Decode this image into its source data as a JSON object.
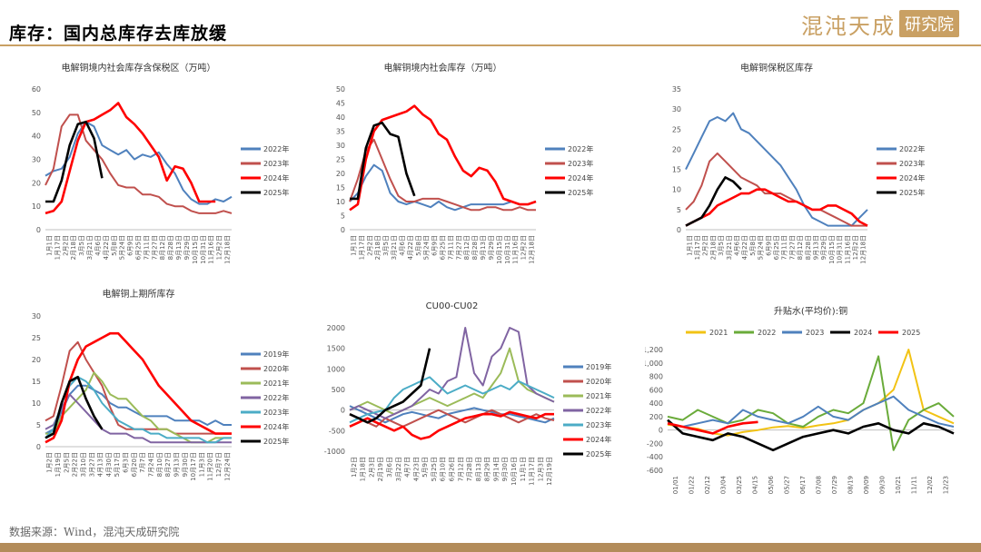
{
  "header": {
    "title": "库存：国内总库存去库放缓",
    "brand_name": "混沌天成",
    "brand_seal": "研究院",
    "accent_color": "#c9a063"
  },
  "footer": {
    "source": "数据来源：Wind，混沌天成研究院",
    "bar_color": "#b38c5a"
  },
  "chart_data": [
    {
      "type": "line",
      "title": "电解铜境内社会库存含保税区（万吨）",
      "ylim": [
        0,
        60
      ],
      "yticks": [
        0,
        10,
        20,
        30,
        40,
        50,
        60
      ],
      "xticklabels": [
        "1月1日",
        "1月17日",
        "2月2日",
        "2月18日",
        "3月5日",
        "3月21日",
        "4月6日",
        "4月22日",
        "5月8日",
        "5月24日",
        "6月9日",
        "6月25日",
        "7月11日",
        "7月27日",
        "8月12日",
        "8月28日",
        "9月13日",
        "9月29日",
        "10月15日",
        "10月31日",
        "11月16日",
        "12月2日",
        "12月18日"
      ],
      "legend_position": "right",
      "series": [
        {
          "name": "2022年",
          "color": "#4f81bd",
          "values": [
            23,
            25,
            26,
            31,
            41,
            46,
            44,
            36,
            34,
            32,
            34,
            30,
            32,
            31,
            33,
            28,
            24,
            17,
            13,
            11,
            11,
            13,
            12,
            14
          ]
        },
        {
          "name": "2023年",
          "color": "#c0504d",
          "values": [
            19,
            26,
            44,
            49,
            49,
            38,
            34,
            30,
            24,
            19,
            18,
            18,
            15,
            15,
            14,
            11,
            10,
            10,
            8,
            7,
            7,
            7,
            8,
            7
          ]
        },
        {
          "name": "2024年",
          "color": "#ff0000",
          "values": [
            7,
            8,
            12,
            25,
            38,
            46,
            47,
            49,
            51,
            54,
            48,
            45,
            41,
            36,
            31,
            21,
            27,
            26,
            20,
            12,
            12,
            12,
            null,
            null
          ]
        },
        {
          "name": "2025年",
          "color": "#000000",
          "values": [
            12,
            12,
            21,
            36,
            45,
            46,
            39,
            22,
            null,
            null,
            null,
            null,
            null,
            null,
            null,
            null,
            null,
            null,
            null,
            null,
            null,
            null,
            null,
            null
          ]
        }
      ]
    },
    {
      "type": "line",
      "title": "电解铜境内社会库存（万吨）",
      "ylim": [
        0,
        50
      ],
      "yticks": [
        0,
        5,
        10,
        15,
        20,
        25,
        30,
        35,
        40,
        45,
        50
      ],
      "xticklabels": [
        "1月1日",
        "1月17日",
        "2月2日",
        "2月18日",
        "3月5日",
        "3月21日",
        "4月6日",
        "4月22日",
        "5月8日",
        "5月24日",
        "6月9日",
        "6月25日",
        "7月11日",
        "7月27日",
        "8月12日",
        "8月28日",
        "9月13日",
        "9月29日",
        "10月15日",
        "10月31日",
        "11月16日",
        "12月2日",
        "12月18日"
      ],
      "legend_position": "right",
      "series": [
        {
          "name": "2022年",
          "color": "#4f81bd",
          "values": [
            10,
            13,
            19,
            23,
            21,
            13,
            10,
            9,
            10,
            9,
            8,
            10,
            8,
            7,
            8,
            9,
            9,
            9,
            9,
            9,
            10,
            9,
            9,
            10
          ]
        },
        {
          "name": "2023年",
          "color": "#c0504d",
          "values": [
            10,
            18,
            28,
            32,
            25,
            18,
            12,
            10,
            10,
            11,
            11,
            11,
            10,
            9,
            8,
            7,
            7,
            8,
            8,
            7,
            7,
            8,
            7,
            7
          ]
        },
        {
          "name": "2024年",
          "color": "#ff0000",
          "values": [
            7,
            9,
            25,
            35,
            39,
            40,
            41,
            42,
            44,
            41,
            39,
            34,
            32,
            26,
            21,
            19,
            22,
            21,
            17,
            11,
            10,
            9,
            9,
            10
          ]
        },
        {
          "name": "2025年",
          "color": "#000000",
          "values": [
            11,
            11,
            29,
            37,
            38,
            34,
            33,
            20,
            12,
            null,
            null,
            null,
            null,
            null,
            null,
            null,
            null,
            null,
            null,
            null,
            null,
            null,
            null,
            null
          ]
        }
      ]
    },
    {
      "type": "line",
      "title": "电解铜保税区库存",
      "ylim": [
        0,
        35
      ],
      "yticks": [
        0,
        5,
        10,
        15,
        20,
        25,
        30,
        35
      ],
      "xticklabels": [
        "1月1日",
        "1月17日",
        "2月2日",
        "2月18日",
        "3月5日",
        "3月21日",
        "4月6日",
        "4月22日",
        "5月8日",
        "5月24日",
        "6月9日",
        "6月25日",
        "7月11日",
        "7月27日",
        "8月12日",
        "8月28日",
        "9月13日",
        "9月29日",
        "10月15日",
        "10月31日",
        "11月16日",
        "12月2日",
        "12月18日"
      ],
      "legend_position": "right",
      "series": [
        {
          "name": "2022年",
          "color": "#4f81bd",
          "values": [
            15,
            19,
            23,
            27,
            28,
            27,
            29,
            25,
            24,
            22,
            20,
            18,
            16,
            13,
            10,
            6,
            3,
            2,
            1,
            1,
            1,
            1,
            3,
            5
          ]
        },
        {
          "name": "2023年",
          "color": "#c0504d",
          "values": [
            5,
            7,
            11,
            17,
            19,
            17,
            15,
            13,
            12,
            11,
            9,
            9,
            9,
            8,
            7,
            6,
            5,
            5,
            4,
            3,
            2,
            1,
            1,
            1
          ]
        },
        {
          "name": "2024年",
          "color": "#ff0000",
          "values": [
            1,
            2,
            3,
            4,
            6,
            7,
            8,
            9,
            9,
            10,
            10,
            9,
            8,
            7,
            7,
            6,
            5,
            5,
            6,
            6,
            5,
            4,
            2,
            1
          ]
        },
        {
          "name": "2025年",
          "color": "#000000",
          "values": [
            1,
            2,
            3,
            6,
            10,
            13,
            12,
            10,
            null,
            null,
            null,
            null,
            null,
            null,
            null,
            null,
            null,
            null,
            null,
            null,
            null,
            null,
            null,
            null
          ]
        }
      ]
    },
    {
      "type": "line",
      "title": "电解铜上期所库存",
      "ylim": [
        0,
        30
      ],
      "yticks": [
        0,
        5,
        10,
        15,
        20,
        25,
        30
      ],
      "xticklabels": [
        "1月2日",
        "1月19日",
        "2月5日",
        "2月22日",
        "3月10日",
        "3月27日",
        "4月13日",
        "4月30日",
        "5月17日",
        "6月3日",
        "6月20日",
        "7月7日",
        "7月24日",
        "8月10日",
        "8月27日",
        "9月13日",
        "9月30日",
        "10月17日",
        "11月3日",
        "11月20日",
        "12月7日",
        "12月24日"
      ],
      "legend_position": "right",
      "series": [
        {
          "name": "2019年",
          "color": "#4f81bd",
          "values": [
            3,
            4,
            8,
            12,
            14,
            14,
            13,
            12,
            10,
            9,
            9,
            8,
            7,
            7,
            7,
            7,
            6,
            6,
            6,
            6,
            5,
            6,
            5,
            5
          ]
        },
        {
          "name": "2020年",
          "color": "#c0504d",
          "values": [
            6,
            7,
            14,
            22,
            24,
            20,
            17,
            14,
            9,
            5,
            4,
            4,
            4,
            4,
            4,
            4,
            3,
            3,
            3,
            3,
            3,
            3,
            3,
            3
          ]
        },
        {
          "name": "2021年",
          "color": "#9bbb59",
          "values": [
            3,
            3,
            7,
            9,
            11,
            13,
            17,
            15,
            12,
            11,
            11,
            9,
            7,
            6,
            4,
            4,
            3,
            2,
            1,
            1,
            1,
            2,
            2,
            2
          ]
        },
        {
          "name": "2022年",
          "color": "#8064a2",
          "values": [
            4,
            5,
            9,
            12,
            10,
            8,
            6,
            4,
            3,
            3,
            3,
            2,
            2,
            1,
            1,
            1,
            1,
            1,
            1,
            1,
            1,
            1,
            1,
            1
          ]
        },
        {
          "name": "2023年",
          "color": "#4bacc6",
          "values": [
            2,
            4,
            10,
            14,
            16,
            15,
            13,
            10,
            8,
            6,
            5,
            4,
            4,
            3,
            3,
            2,
            2,
            2,
            2,
            2,
            1,
            1,
            2,
            2
          ]
        },
        {
          "name": "2024年",
          "color": "#ff0000",
          "values": [
            1,
            2,
            6,
            15,
            20,
            23,
            24,
            25,
            26,
            26,
            24,
            22,
            20,
            17,
            14,
            12,
            10,
            8,
            6,
            5,
            4,
            3,
            3,
            3
          ]
        },
        {
          "name": "2025年",
          "color": "#000000",
          "values": [
            2,
            3,
            10,
            15,
            16,
            11,
            7,
            4,
            null,
            null,
            null,
            null,
            null,
            null,
            null,
            null,
            null,
            null,
            null,
            null,
            null,
            null,
            null,
            null
          ]
        }
      ]
    },
    {
      "type": "line",
      "title": "CU00-CU02",
      "ylim": [
        -1000,
        2000
      ],
      "yticks": [
        -1000,
        -500,
        0,
        500,
        1000,
        1500,
        2000
      ],
      "xticklabels": [
        "1月2日",
        "1月18日",
        "2月3日",
        "2月19日",
        "3月6日",
        "3月22日",
        "4月7日",
        "4月23日",
        "5月9日",
        "5月25日",
        "6月10日",
        "6月26日",
        "7月12日",
        "7月28日",
        "8月13日",
        "8月29日",
        "9月14日",
        "9月30日",
        "10月16日",
        "11月1日",
        "11月17日",
        "12月3日",
        "12月19日"
      ],
      "legend_position": "right",
      "series": [
        {
          "name": "2019年",
          "color": "#4f81bd",
          "values": [
            100,
            0,
            -100,
            -200,
            -300,
            -200,
            -100,
            -50,
            -100,
            -150,
            -200,
            -100,
            -50,
            0,
            50,
            0,
            -50,
            -100,
            -100,
            -150,
            -200,
            -250,
            -300,
            -200
          ]
        },
        {
          "name": "2020年",
          "color": "#c0504d",
          "values": [
            -100,
            -200,
            -300,
            -400,
            -200,
            -300,
            -400,
            -300,
            -200,
            -100,
            0,
            -100,
            -200,
            -300,
            -200,
            -100,
            0,
            -100,
            -200,
            -300,
            -200,
            -100,
            -200,
            -250
          ]
        },
        {
          "name": "2021年",
          "color": "#9bbb59",
          "values": [
            0,
            100,
            200,
            100,
            0,
            -100,
            0,
            100,
            200,
            300,
            200,
            100,
            200,
            300,
            400,
            300,
            600,
            900,
            1500,
            700,
            500,
            400,
            300,
            200
          ]
        },
        {
          "name": "2022年",
          "color": "#8064a2",
          "values": [
            0,
            100,
            0,
            -100,
            -200,
            -100,
            0,
            100,
            300,
            500,
            400,
            700,
            800,
            2000,
            900,
            600,
            1300,
            1500,
            2000,
            1900,
            600,
            400,
            300,
            200
          ]
        },
        {
          "name": "2023年",
          "color": "#4bacc6",
          "values": [
            -300,
            -200,
            -100,
            -50,
            0,
            300,
            500,
            600,
            700,
            800,
            600,
            400,
            500,
            600,
            500,
            400,
            500,
            600,
            500,
            700,
            600,
            500,
            400,
            300
          ]
        },
        {
          "name": "2024年",
          "color": "#ff0000",
          "values": [
            -400,
            -300,
            -200,
            -300,
            -400,
            -500,
            -400,
            -600,
            -700,
            -650,
            -500,
            -400,
            -300,
            -200,
            -150,
            -100,
            -100,
            -150,
            -50,
            -100,
            -150,
            -200,
            -100,
            -100
          ]
        },
        {
          "name": "2025年",
          "color": "#000000",
          "values": [
            -100,
            -200,
            -300,
            -200,
            0,
            100,
            200,
            400,
            600,
            1500,
            null,
            null,
            null,
            null,
            null,
            null,
            null,
            null,
            null,
            null,
            null,
            null,
            null,
            null
          ]
        }
      ]
    },
    {
      "type": "line",
      "title": "升贴水(平均价):铜",
      "ylim": [
        -600,
        1200
      ],
      "yticks": [
        -600,
        -400,
        -200,
        0,
        200,
        400,
        600,
        800,
        1000,
        1200
      ],
      "ytickformat": [
        "-600",
        "-400",
        "-200",
        "0",
        "200",
        "400",
        "600",
        "800",
        "1,000",
        "1,200"
      ],
      "xticklabels": [
        "01/01",
        "01/22",
        "02/12",
        "03/04",
        "03/25",
        "04/15",
        "05/06",
        "05/27",
        "06/17",
        "07/08",
        "07/29",
        "08/19",
        "09/09",
        "09/30",
        "10/21",
        "11/11",
        "12/02",
        "12/23"
      ],
      "legend_position": "top",
      "series": [
        {
          "name": "2021",
          "color": "#f2c314",
          "values": [
            80,
            50,
            20,
            -50,
            -80,
            -30,
            0,
            40,
            60,
            30,
            70,
            100,
            150,
            300,
            400,
            600,
            1200,
            300,
            200,
            100
          ]
        },
        {
          "name": "2022",
          "color": "#6aab3a",
          "values": [
            200,
            150,
            300,
            200,
            100,
            150,
            300,
            250,
            100,
            50,
            200,
            300,
            250,
            400,
            1100,
            -300,
            150,
            300,
            400,
            200
          ]
        },
        {
          "name": "2023",
          "color": "#4f81bd",
          "values": [
            100,
            50,
            100,
            150,
            100,
            300,
            200,
            150,
            100,
            200,
            350,
            200,
            150,
            300,
            400,
            500,
            300,
            200,
            100,
            50
          ]
        },
        {
          "name": "2024",
          "color": "#000000",
          "values": [
            150,
            -50,
            -100,
            -150,
            -50,
            -100,
            -200,
            -300,
            -200,
            -100,
            -50,
            0,
            -50,
            50,
            100,
            0,
            -50,
            100,
            50,
            -50
          ]
        },
        {
          "name": "2025",
          "color": "#ff0000",
          "values": [
            100,
            50,
            0,
            -50,
            50,
            100,
            120,
            null,
            null,
            null,
            null,
            null,
            null,
            null,
            null,
            null,
            null,
            null,
            null,
            null
          ]
        }
      ]
    }
  ]
}
